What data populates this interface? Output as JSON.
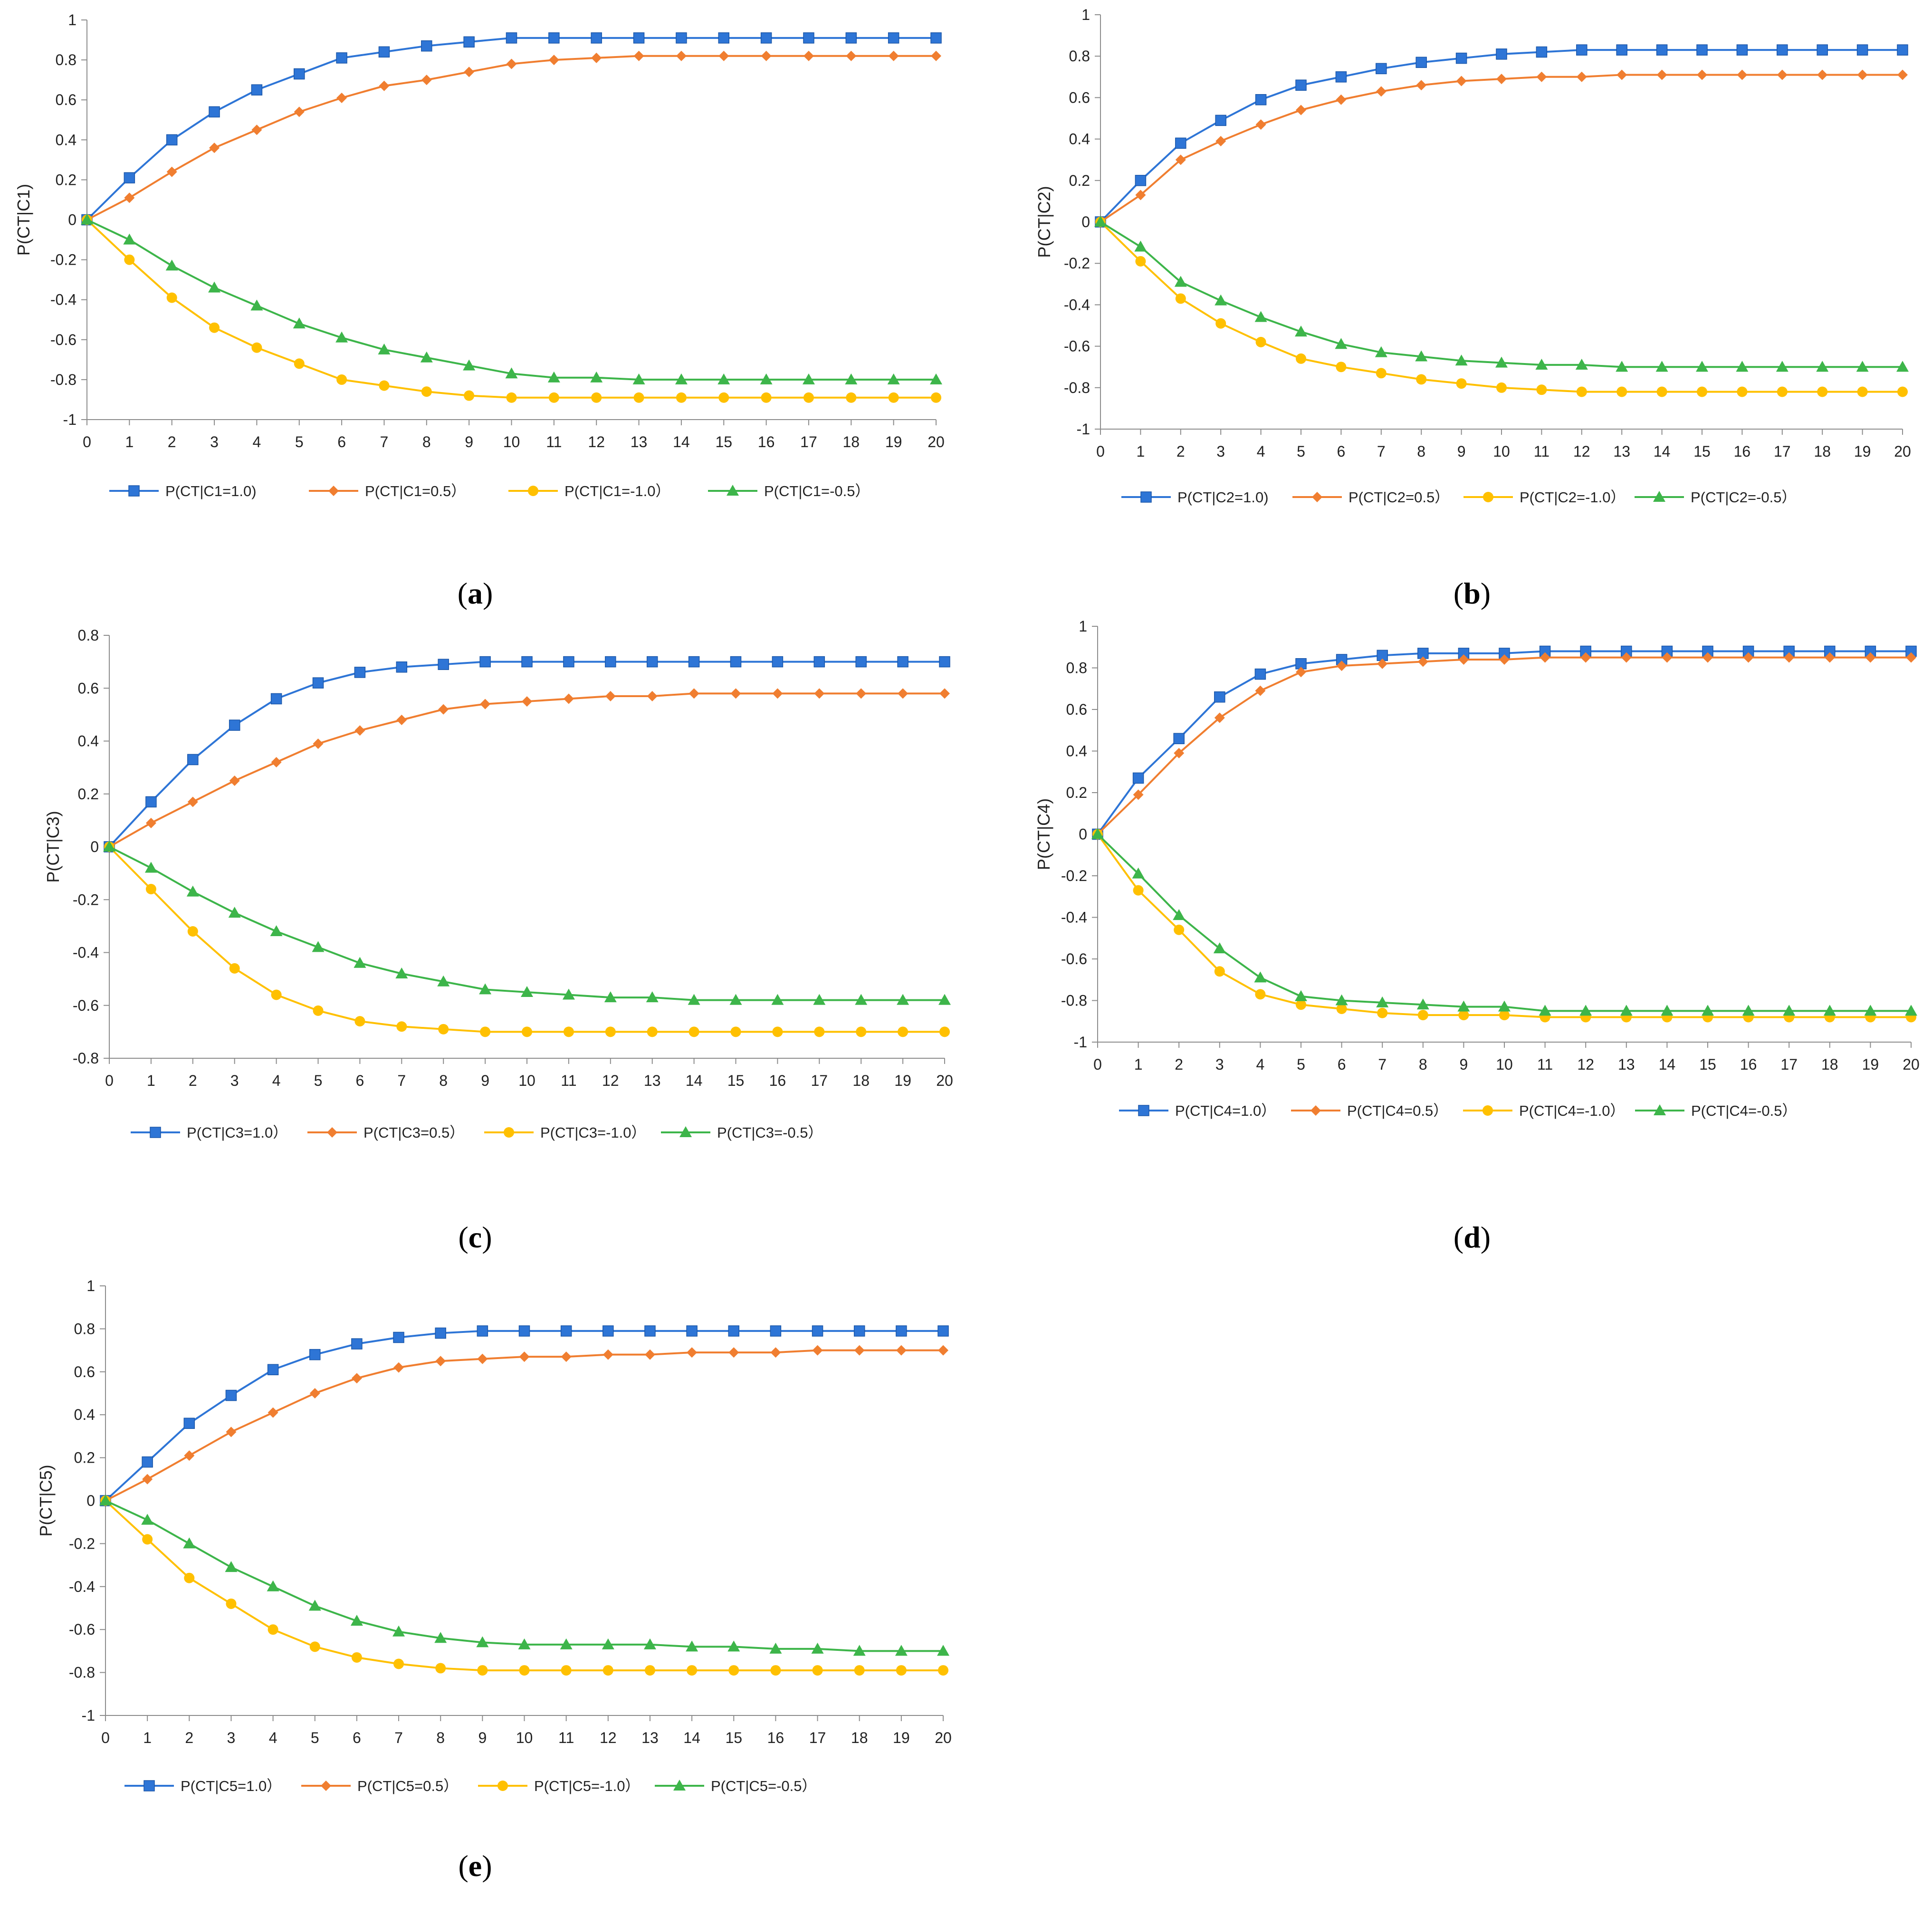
{
  "chart_data": [
    {
      "type": "line",
      "caption": "a",
      "ylabel": "P(CT|C1)",
      "xlabel": "",
      "ylim": [
        -1,
        1
      ],
      "yticks": [
        "1",
        "0.8",
        "0.6",
        "0.4",
        "0.2",
        "0",
        "-0.2",
        "-0.4",
        "-0.6",
        "-0.8",
        "-1"
      ],
      "x": [
        0,
        1,
        2,
        3,
        4,
        5,
        6,
        7,
        8,
        9,
        10,
        11,
        12,
        13,
        14,
        15,
        16,
        17,
        18,
        19,
        20
      ],
      "series": [
        {
          "name": "P(CT|C1=1.0)",
          "marker": "square",
          "color": "#2E75D6",
          "values": [
            0,
            0.21,
            0.4,
            0.54,
            0.65,
            0.73,
            0.81,
            0.84,
            0.87,
            0.89,
            0.91,
            0.91,
            0.91,
            0.91,
            0.91,
            0.91,
            0.91,
            0.91,
            0.91,
            0.91,
            0.91
          ]
        },
        {
          "name": "P(CT|C1=0.5）",
          "marker": "diamond",
          "color": "#F07E30",
          "values": [
            0,
            0.11,
            0.24,
            0.36,
            0.45,
            0.54,
            0.61,
            0.67,
            0.7,
            0.74,
            0.78,
            0.8,
            0.81,
            0.82,
            0.82,
            0.82,
            0.82,
            0.82,
            0.82,
            0.82,
            0.82
          ]
        },
        {
          "name": "P(CT|C1=-1.0）",
          "marker": "circle",
          "color": "#FFC000",
          "values": [
            0,
            -0.2,
            -0.39,
            -0.54,
            -0.64,
            -0.72,
            -0.8,
            -0.83,
            -0.86,
            -0.88,
            -0.89,
            -0.89,
            -0.89,
            -0.89,
            -0.89,
            -0.89,
            -0.89,
            -0.89,
            -0.89,
            -0.89,
            -0.89
          ]
        },
        {
          "name": "P(CT|C1=-0.5）",
          "marker": "triangle",
          "color": "#3DB54A",
          "values": [
            0,
            -0.1,
            -0.23,
            -0.34,
            -0.43,
            -0.52,
            -0.59,
            -0.65,
            -0.69,
            -0.73,
            -0.77,
            -0.79,
            -0.79,
            -0.8,
            -0.8,
            -0.8,
            -0.8,
            -0.8,
            -0.8,
            -0.8,
            -0.8
          ]
        }
      ]
    },
    {
      "type": "line",
      "caption": "b",
      "ylabel": "P(CT|C2)",
      "xlabel": "",
      "ylim": [
        -1,
        1
      ],
      "yticks": [
        "1",
        "0.8",
        "0.6",
        "0.4",
        "0.2",
        "0",
        "-0.2",
        "-0.4",
        "-0.6",
        "-0.8",
        "-1"
      ],
      "x": [
        0,
        1,
        2,
        3,
        4,
        5,
        6,
        7,
        8,
        9,
        10,
        11,
        12,
        13,
        14,
        15,
        16,
        17,
        18,
        19,
        20
      ],
      "series": [
        {
          "name": "P(CT|C2=1.0)",
          "marker": "square",
          "color": "#2E75D6",
          "values": [
            0,
            0.2,
            0.38,
            0.49,
            0.59,
            0.66,
            0.7,
            0.74,
            0.77,
            0.79,
            0.81,
            0.82,
            0.83,
            0.83,
            0.83,
            0.83,
            0.83,
            0.83,
            0.83,
            0.83,
            0.83
          ]
        },
        {
          "name": "P(CT|C2=0.5）",
          "marker": "diamond",
          "color": "#F07E30",
          "values": [
            0,
            0.13,
            0.3,
            0.39,
            0.47,
            0.54,
            0.59,
            0.63,
            0.66,
            0.68,
            0.69,
            0.7,
            0.7,
            0.71,
            0.71,
            0.71,
            0.71,
            0.71,
            0.71,
            0.71,
            0.71
          ]
        },
        {
          "name": "P(CT|C2=-1.0）",
          "marker": "circle",
          "color": "#FFC000",
          "values": [
            0,
            -0.19,
            -0.37,
            -0.49,
            -0.58,
            -0.66,
            -0.7,
            -0.73,
            -0.76,
            -0.78,
            -0.8,
            -0.81,
            -0.82,
            -0.82,
            -0.82,
            -0.82,
            -0.82,
            -0.82,
            -0.82,
            -0.82,
            -0.82
          ]
        },
        {
          "name": "P(CT|C2=-0.5）",
          "marker": "triangle",
          "color": "#3DB54A",
          "values": [
            0,
            -0.12,
            -0.29,
            -0.38,
            -0.46,
            -0.53,
            -0.59,
            -0.63,
            -0.65,
            -0.67,
            -0.68,
            -0.69,
            -0.69,
            -0.7,
            -0.7,
            -0.7,
            -0.7,
            -0.7,
            -0.7,
            -0.7,
            -0.7
          ]
        }
      ]
    },
    {
      "type": "line",
      "caption": "c",
      "ylabel": "P(CT|C3)",
      "xlabel": "",
      "ylim": [
        -0.8,
        0.8
      ],
      "yticks": [
        "0.8",
        "0.6",
        "0.4",
        "0.2",
        "0",
        "-0.2",
        "-0.4",
        "-0.6",
        "-0.8"
      ],
      "x": [
        0,
        1,
        2,
        3,
        4,
        5,
        6,
        7,
        8,
        9,
        10,
        11,
        12,
        13,
        14,
        15,
        16,
        17,
        18,
        19,
        20
      ],
      "series": [
        {
          "name": "P(CT|C3=1.0）",
          "marker": "square",
          "color": "#2E75D6",
          "values": [
            0,
            0.17,
            0.33,
            0.46,
            0.56,
            0.62,
            0.66,
            0.68,
            0.69,
            0.7,
            0.7,
            0.7,
            0.7,
            0.7,
            0.7,
            0.7,
            0.7,
            0.7,
            0.7,
            0.7,
            0.7
          ]
        },
        {
          "name": "P(CT|C3=0.5）",
          "marker": "diamond",
          "color": "#F07E30",
          "values": [
            0,
            0.09,
            0.17,
            0.25,
            0.32,
            0.39,
            0.44,
            0.48,
            0.52,
            0.54,
            0.55,
            0.56,
            0.57,
            0.57,
            0.58,
            0.58,
            0.58,
            0.58,
            0.58,
            0.58,
            0.58
          ]
        },
        {
          "name": "P(CT|C3=-1.0）",
          "marker": "circle",
          "color": "#FFC000",
          "values": [
            0,
            -0.16,
            -0.32,
            -0.46,
            -0.56,
            -0.62,
            -0.66,
            -0.68,
            -0.69,
            -0.7,
            -0.7,
            -0.7,
            -0.7,
            -0.7,
            -0.7,
            -0.7,
            -0.7,
            -0.7,
            -0.7,
            -0.7,
            -0.7
          ]
        },
        {
          "name": "P(CT|C3=-0.5）",
          "marker": "triangle",
          "color": "#3DB54A",
          "values": [
            0,
            -0.08,
            -0.17,
            -0.25,
            -0.32,
            -0.38,
            -0.44,
            -0.48,
            -0.51,
            -0.54,
            -0.55,
            -0.56,
            -0.57,
            -0.57,
            -0.58,
            -0.58,
            -0.58,
            -0.58,
            -0.58,
            -0.58,
            -0.58
          ]
        }
      ]
    },
    {
      "type": "line",
      "caption": "d",
      "ylabel": "P(CT|C4)",
      "xlabel": "",
      "ylim": [
        -1,
        1
      ],
      "yticks": [
        "1",
        "0.8",
        "0.6",
        "0.4",
        "0.2",
        "0",
        "-0.2",
        "-0.4",
        "-0.6",
        "-0.8",
        "-1"
      ],
      "x": [
        0,
        1,
        2,
        3,
        4,
        5,
        6,
        7,
        8,
        9,
        10,
        11,
        12,
        13,
        14,
        15,
        16,
        17,
        18,
        19,
        20
      ],
      "series": [
        {
          "name": "P(CT|C4=1.0）",
          "marker": "square",
          "color": "#2E75D6",
          "values": [
            0,
            0.27,
            0.46,
            0.66,
            0.77,
            0.82,
            0.84,
            0.86,
            0.87,
            0.87,
            0.87,
            0.88,
            0.88,
            0.88,
            0.88,
            0.88,
            0.88,
            0.88,
            0.88,
            0.88,
            0.88
          ]
        },
        {
          "name": "P(CT|C4=0.5）",
          "marker": "diamond",
          "color": "#F07E30",
          "values": [
            0,
            0.19,
            0.39,
            0.56,
            0.69,
            0.78,
            0.81,
            0.82,
            0.83,
            0.84,
            0.84,
            0.85,
            0.85,
            0.85,
            0.85,
            0.85,
            0.85,
            0.85,
            0.85,
            0.85,
            0.85
          ]
        },
        {
          "name": "P(CT|C4=-1.0）",
          "marker": "circle",
          "color": "#FFC000",
          "values": [
            0,
            -0.27,
            -0.46,
            -0.66,
            -0.77,
            -0.82,
            -0.84,
            -0.86,
            -0.87,
            -0.87,
            -0.87,
            -0.88,
            -0.88,
            -0.88,
            -0.88,
            -0.88,
            -0.88,
            -0.88,
            -0.88,
            -0.88,
            -0.88
          ]
        },
        {
          "name": "P(CT|C4=-0.5）",
          "marker": "triangle",
          "color": "#3DB54A",
          "values": [
            0,
            -0.19,
            -0.39,
            -0.55,
            -0.69,
            -0.78,
            -0.8,
            -0.81,
            -0.82,
            -0.83,
            -0.83,
            -0.85,
            -0.85,
            -0.85,
            -0.85,
            -0.85,
            -0.85,
            -0.85,
            -0.85,
            -0.85,
            -0.85
          ]
        }
      ]
    },
    {
      "type": "line",
      "caption": "e",
      "ylabel": "P(CT|C5)",
      "xlabel": "",
      "ylim": [
        -1,
        1
      ],
      "yticks": [
        "1",
        "0.8",
        "0.6",
        "0.4",
        "0.2",
        "0",
        "-0.2",
        "-0.4",
        "-0.6",
        "-0.8",
        "-1"
      ],
      "x": [
        0,
        1,
        2,
        3,
        4,
        5,
        6,
        7,
        8,
        9,
        10,
        11,
        12,
        13,
        14,
        15,
        16,
        17,
        18,
        19,
        20
      ],
      "series": [
        {
          "name": "P(CT|C5=1.0）",
          "marker": "square",
          "color": "#2E75D6",
          "values": [
            0,
            0.18,
            0.36,
            0.49,
            0.61,
            0.68,
            0.73,
            0.76,
            0.78,
            0.79,
            0.79,
            0.79,
            0.79,
            0.79,
            0.79,
            0.79,
            0.79,
            0.79,
            0.79,
            0.79,
            0.79
          ]
        },
        {
          "name": "P(CT|C5=0.5）",
          "marker": "diamond",
          "color": "#F07E30",
          "values": [
            0,
            0.1,
            0.21,
            0.32,
            0.41,
            0.5,
            0.57,
            0.62,
            0.65,
            0.66,
            0.67,
            0.67,
            0.68,
            0.68,
            0.69,
            0.69,
            0.69,
            0.7,
            0.7,
            0.7,
            0.7
          ]
        },
        {
          "name": "P(CT|C5=-1.0）",
          "marker": "circle",
          "color": "#FFC000",
          "values": [
            0,
            -0.18,
            -0.36,
            -0.48,
            -0.6,
            -0.68,
            -0.73,
            -0.76,
            -0.78,
            -0.79,
            -0.79,
            -0.79,
            -0.79,
            -0.79,
            -0.79,
            -0.79,
            -0.79,
            -0.79,
            -0.79,
            -0.79,
            -0.79
          ]
        },
        {
          "name": "P(CT|C5=-0.5）",
          "marker": "triangle",
          "color": "#3DB54A",
          "values": [
            0,
            -0.09,
            -0.2,
            -0.31,
            -0.4,
            -0.49,
            -0.56,
            -0.61,
            -0.64,
            -0.66,
            -0.67,
            -0.67,
            -0.67,
            -0.67,
            -0.68,
            -0.68,
            -0.69,
            -0.69,
            -0.7,
            -0.7,
            -0.7
          ]
        }
      ]
    }
  ]
}
